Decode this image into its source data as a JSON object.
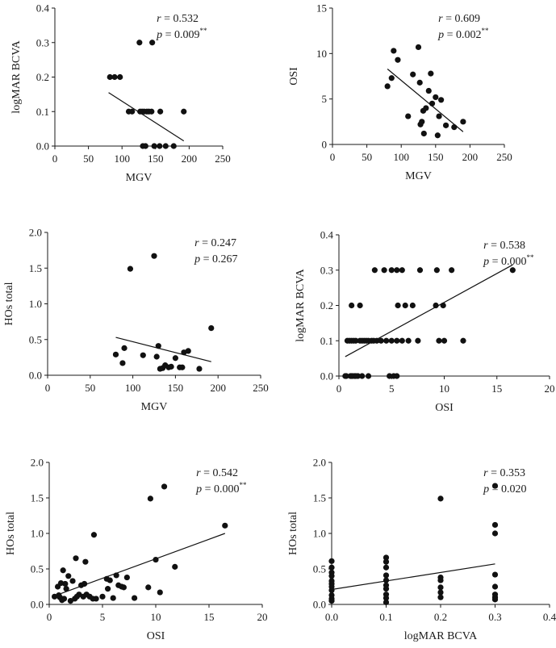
{
  "chart_data": [
    {
      "type": "scatter",
      "xlabel": "MGV",
      "ylabel": "logMAR BCVA",
      "xlim": [
        0,
        250
      ],
      "ylim": [
        0,
        0.4
      ],
      "xticks": [
        0,
        50,
        100,
        150,
        200,
        250
      ],
      "yticks": [
        0.0,
        0.1,
        0.2,
        0.3,
        0.4
      ],
      "yticklabels": [
        "0.0",
        "0.1",
        "0.2",
        "0.3",
        "0.4"
      ],
      "r_label": "r",
      "r_value": " = 0.532",
      "p_label": "p",
      "p_value": " = 0.009",
      "p_sig": "**",
      "x": [
        82,
        89,
        97,
        110,
        115,
        126,
        130,
        133,
        137,
        140,
        145,
        157,
        192,
        127,
        144,
        131,
        135,
        148,
        156,
        165,
        177
      ],
      "y": [
        0.2,
        0.2,
        0.2,
        0.1,
        0.1,
        0.3,
        0.1,
        0.1,
        0.1,
        0.1,
        0.3,
        0.1,
        0.1,
        0.1,
        0.1,
        0.0,
        0.0,
        0.0,
        0.0,
        0.0,
        0.0
      ],
      "fit": {
        "x": [
          80,
          192
        ],
        "y": [
          0.155,
          0.015
        ]
      }
    },
    {
      "type": "scatter",
      "xlabel": "MGV",
      "ylabel": "OSI",
      "xlim": [
        0,
        250
      ],
      "ylim": [
        0,
        15
      ],
      "xticks": [
        0,
        50,
        100,
        150,
        200,
        250
      ],
      "yticks": [
        0,
        5,
        10,
        15
      ],
      "yticklabels": [
        "0",
        "5",
        "10",
        "15"
      ],
      "r_label": "r",
      "r_value": " = 0.609",
      "p_label": "p",
      "p_value": " = 0.002",
      "p_sig": "**",
      "x": [
        80,
        86,
        89,
        95,
        110,
        117,
        125,
        127,
        128,
        130,
        132,
        133,
        136,
        140,
        143,
        145,
        150,
        153,
        155,
        158,
        165,
        177,
        190
      ],
      "y": [
        6.4,
        7.3,
        10.3,
        9.3,
        3.1,
        7.7,
        10.7,
        6.8,
        2.2,
        2.5,
        3.7,
        1.2,
        4.0,
        5.9,
        7.8,
        4.5,
        5.2,
        1.0,
        3.1,
        4.9,
        2.1,
        1.9,
        2.5
      ],
      "fit": {
        "x": [
          80,
          190
        ],
        "y": [
          8.3,
          1.4
        ]
      }
    },
    {
      "type": "scatter",
      "xlabel": "MGV",
      "ylabel": "HOs total",
      "xlim": [
        0,
        250
      ],
      "ylim": [
        0,
        2.0
      ],
      "xticks": [
        0,
        50,
        100,
        150,
        200,
        250
      ],
      "yticks": [
        0.0,
        0.5,
        1.0,
        1.5,
        2.0
      ],
      "yticklabels": [
        "0.0",
        "0.5",
        "1.0",
        "1.5",
        "2.0"
      ],
      "r_label": "r",
      "r_value": " = 0.247",
      "p_label": "p",
      "p_value": " = 0.267",
      "p_sig": "",
      "x": [
        80,
        88,
        90,
        97,
        112,
        125,
        128,
        130,
        132,
        135,
        138,
        142,
        145,
        150,
        155,
        158,
        160,
        165,
        178,
        192
      ],
      "y": [
        0.29,
        0.17,
        0.38,
        1.49,
        0.28,
        1.67,
        0.26,
        0.41,
        0.09,
        0.1,
        0.14,
        0.11,
        0.12,
        0.24,
        0.11,
        0.11,
        0.32,
        0.34,
        0.09,
        0.66
      ],
      "fit": {
        "x": [
          80,
          192
        ],
        "y": [
          0.53,
          0.19
        ]
      }
    },
    {
      "type": "scatter",
      "xlabel": "OSI",
      "ylabel": "logMAR BCVA",
      "xlim": [
        0,
        20
      ],
      "ylim": [
        0,
        0.4
      ],
      "xticks": [
        0,
        5,
        10,
        15,
        20
      ],
      "yticks": [
        0.0,
        0.1,
        0.2,
        0.3,
        0.4
      ],
      "yticklabels": [
        "0.0",
        "0.1",
        "0.2",
        "0.3",
        "0.4"
      ],
      "r_label": "r",
      "r_value": " = 0.538",
      "p_label": "p",
      "p_value": " = 0.000",
      "p_sig": "**",
      "x": [
        0.8,
        1.0,
        1.2,
        1.4,
        1.6,
        2.0,
        2.4,
        0.6,
        1.1,
        1.3,
        1.5,
        1.8,
        2.2,
        2.6,
        2.8,
        3.1,
        3.3,
        3.6,
        4.0,
        4.5,
        5.0,
        5.5,
        6.0,
        6.6,
        7.5,
        9.5,
        10.0,
        11.8,
        1.2,
        2.0,
        5.6,
        6.3,
        7.0,
        9.2,
        9.9,
        3.4,
        4.3,
        5.0,
        5.5,
        6.0,
        7.7,
        9.3,
        10.7,
        16.5,
        0.7,
        1.2,
        1.6,
        2.2,
        2.8,
        4.8,
        5.2,
        5.5
      ],
      "y": [
        0.1,
        0.1,
        0.1,
        0.1,
        0.1,
        0.1,
        0.1,
        0.0,
        0.0,
        0.0,
        0.0,
        0.0,
        0.1,
        0.1,
        0.1,
        0.1,
        0.1,
        0.1,
        0.1,
        0.1,
        0.1,
        0.1,
        0.1,
        0.1,
        0.1,
        0.1,
        0.1,
        0.1,
        0.2,
        0.2,
        0.2,
        0.2,
        0.2,
        0.2,
        0.2,
        0.3,
        0.3,
        0.3,
        0.3,
        0.3,
        0.3,
        0.3,
        0.3,
        0.3,
        0.0,
        0.0,
        0.0,
        0.0,
        0.0,
        0.0,
        0.0,
        0.0
      ],
      "fit": {
        "x": [
          0.6,
          16.5
        ],
        "y": [
          0.055,
          0.315
        ]
      }
    },
    {
      "type": "scatter",
      "xlabel": "OSI",
      "ylabel": "HOs total",
      "xlim": [
        0,
        20
      ],
      "ylim": [
        0,
        2.0
      ],
      "xticks": [
        0,
        5,
        10,
        15,
        20
      ],
      "yticks": [
        0.0,
        0.5,
        1.0,
        1.5,
        2.0
      ],
      "yticklabels": [
        "0.0",
        "0.5",
        "1.0",
        "1.5",
        "2.0"
      ],
      "r_label": "r",
      "r_value": " = 0.542",
      "p_label": "p",
      "p_value": " = 0.000",
      "p_sig": "**",
      "x": [
        0.5,
        0.8,
        1.0,
        1.1,
        1.2,
        1.3,
        1.4,
        1.6,
        1.8,
        2.0,
        2.2,
        2.4,
        2.5,
        2.8,
        3.0,
        3.2,
        3.4,
        3.5,
        3.8,
        4.2,
        4.4,
        5.0,
        5.4,
        5.5,
        5.7,
        6.0,
        6.3,
        6.5,
        7.0,
        7.3,
        8.0,
        9.3,
        9.5,
        10.0,
        10.4,
        10.8,
        11.8,
        16.5,
        0.9,
        1.5,
        2.6,
        3.3,
        4.1,
        6.8
      ],
      "y": [
        0.11,
        0.25,
        0.1,
        0.3,
        0.06,
        0.48,
        0.08,
        0.22,
        0.4,
        0.05,
        0.33,
        0.08,
        0.65,
        0.14,
        0.27,
        0.11,
        0.6,
        0.14,
        0.11,
        0.98,
        0.08,
        0.11,
        0.36,
        0.22,
        0.34,
        0.09,
        0.41,
        0.27,
        0.24,
        0.38,
        0.09,
        0.24,
        1.49,
        0.63,
        0.17,
        1.66,
        0.53,
        1.11,
        0.13,
        0.29,
        0.11,
        0.29,
        0.08,
        0.25
      ],
      "fit": {
        "x": [
          0.5,
          16.5
        ],
        "y": [
          0.12,
          1.0
        ]
      }
    },
    {
      "type": "scatter",
      "xlabel": "logMAR BCVA",
      "ylabel": "HOs total",
      "xlim": [
        0,
        0.4
      ],
      "ylim": [
        0,
        2.0
      ],
      "xticks": [
        0.0,
        0.1,
        0.2,
        0.3,
        0.4
      ],
      "xticklabels": [
        "0.0",
        "0.1",
        "0.2",
        "0.3",
        "0.4"
      ],
      "yticks": [
        0.0,
        0.5,
        1.0,
        1.5,
        2.0
      ],
      "yticklabels": [
        "0.0",
        "0.5",
        "1.0",
        "1.5",
        "2.0"
      ],
      "r_label": "r",
      "r_value": " = 0.353",
      "p_label": "p",
      "p_value": " = 0.020",
      "p_sig": "",
      "x": [
        0,
        0,
        0,
        0,
        0,
        0,
        0,
        0,
        0,
        0,
        0,
        0.1,
        0.1,
        0.1,
        0.1,
        0.1,
        0.1,
        0.1,
        0.1,
        0.1,
        0.1,
        0.2,
        0.2,
        0.2,
        0.2,
        0.2,
        0.2,
        0.3,
        0.3,
        0.3,
        0.3,
        0.3,
        0.3,
        0.3,
        0.3
      ],
      "y": [
        0.61,
        0.52,
        0.4,
        0.33,
        0.29,
        0.25,
        0.2,
        0.13,
        0.08,
        0.05,
        0.45,
        0.66,
        0.6,
        0.52,
        0.41,
        0.34,
        0.27,
        0.22,
        0.14,
        0.09,
        0.03,
        1.49,
        0.38,
        0.34,
        0.24,
        0.17,
        0.1,
        1.67,
        1.12,
        1.0,
        0.42,
        0.25,
        0.14,
        0.1,
        0.07
      ],
      "fit": {
        "x": [
          0,
          0.3
        ],
        "y": [
          0.21,
          0.57
        ]
      }
    }
  ]
}
